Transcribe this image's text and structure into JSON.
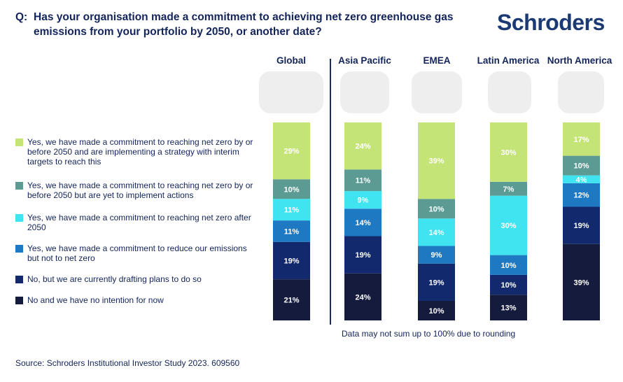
{
  "question": {
    "prefix": "Q:",
    "text": "Has your organisation made a commitment to achieving net zero greenhouse gas emissions from your portfolio by 2050, or another date?"
  },
  "brand": "Schroders",
  "note": "Data may not sum up to 100% due to rounding",
  "source": "Source: Schroders Institutional Investor Study 2023. 609560",
  "chart_data": {
    "type": "bar",
    "stacked": true,
    "categories": [
      "Global",
      "Asia Pacific",
      "EMEA",
      "Latin America",
      "North America"
    ],
    "ylim": [
      0,
      100
    ],
    "series": [
      {
        "name": "Yes, we have made a commitment to reaching net zero by or before 2050 and are implementing a strategy with interim targets to reach this",
        "color": "#c5e478",
        "values": [
          29,
          24,
          39,
          30,
          17
        ]
      },
      {
        "name": "Yes, we have made a commitment to reaching net zero by or before 2050 but are yet to implement actions",
        "color": "#5b9b93",
        "values": [
          10,
          11,
          10,
          7,
          10
        ]
      },
      {
        "name": "Yes, we have made a commitment to reaching net zero after 2050",
        "color": "#40e3f0",
        "values": [
          11,
          9,
          14,
          30,
          4
        ]
      },
      {
        "name": "Yes, we have made a commitment to reduce our emissions but not to net zero",
        "color": "#1f79c2",
        "values": [
          11,
          14,
          9,
          10,
          12
        ]
      },
      {
        "name": "No, but we are currently drafting plans to do so",
        "color": "#12296d",
        "values": [
          19,
          19,
          19,
          10,
          19
        ]
      },
      {
        "name": "No and we have no intention for now",
        "color": "#151b3c",
        "values": [
          21,
          24,
          10,
          13,
          39
        ]
      }
    ]
  }
}
